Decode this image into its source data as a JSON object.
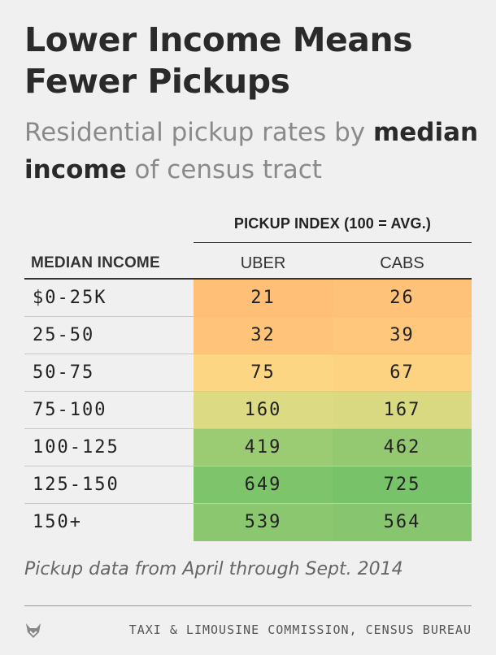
{
  "header": {
    "title": "Lower Income Means Fewer Pickups",
    "subtitle_pre": "Residential pickup rates by ",
    "subtitle_bold": "median income",
    "subtitle_post": " of census tract"
  },
  "table_head": {
    "index_label": "PICKUP INDEX (100 = AVG.)",
    "income_label": "MEDIAN INCOME",
    "uber_label": "UBER",
    "cabs_label": "CABS"
  },
  "chart_data": {
    "type": "table",
    "title": "Lower Income Means Fewer Pickups",
    "subtitle": "Residential pickup rates by median income of census tract",
    "columns": [
      "MEDIAN INCOME",
      "UBER",
      "CABS"
    ],
    "categories": [
      "$0-25K",
      "25-50",
      "50-75",
      "75-100",
      "100-125",
      "125-150",
      "150+"
    ],
    "series": [
      {
        "name": "UBER",
        "values": [
          21,
          32,
          75,
          160,
          419,
          649,
          539
        ]
      },
      {
        "name": "CABS",
        "values": [
          26,
          39,
          67,
          167,
          462,
          725,
          564
        ]
      }
    ],
    "colors": {
      "low": "#ffbf76",
      "mid": "#fce18a",
      "high": "#78c36a"
    }
  },
  "footer": {
    "note": "Pickup data from April through Sept. 2014",
    "source": "TAXI & LIMOUSINE COMMISSION, CENSUS BUREAU",
    "logo_icon": "fox-logo-icon"
  }
}
